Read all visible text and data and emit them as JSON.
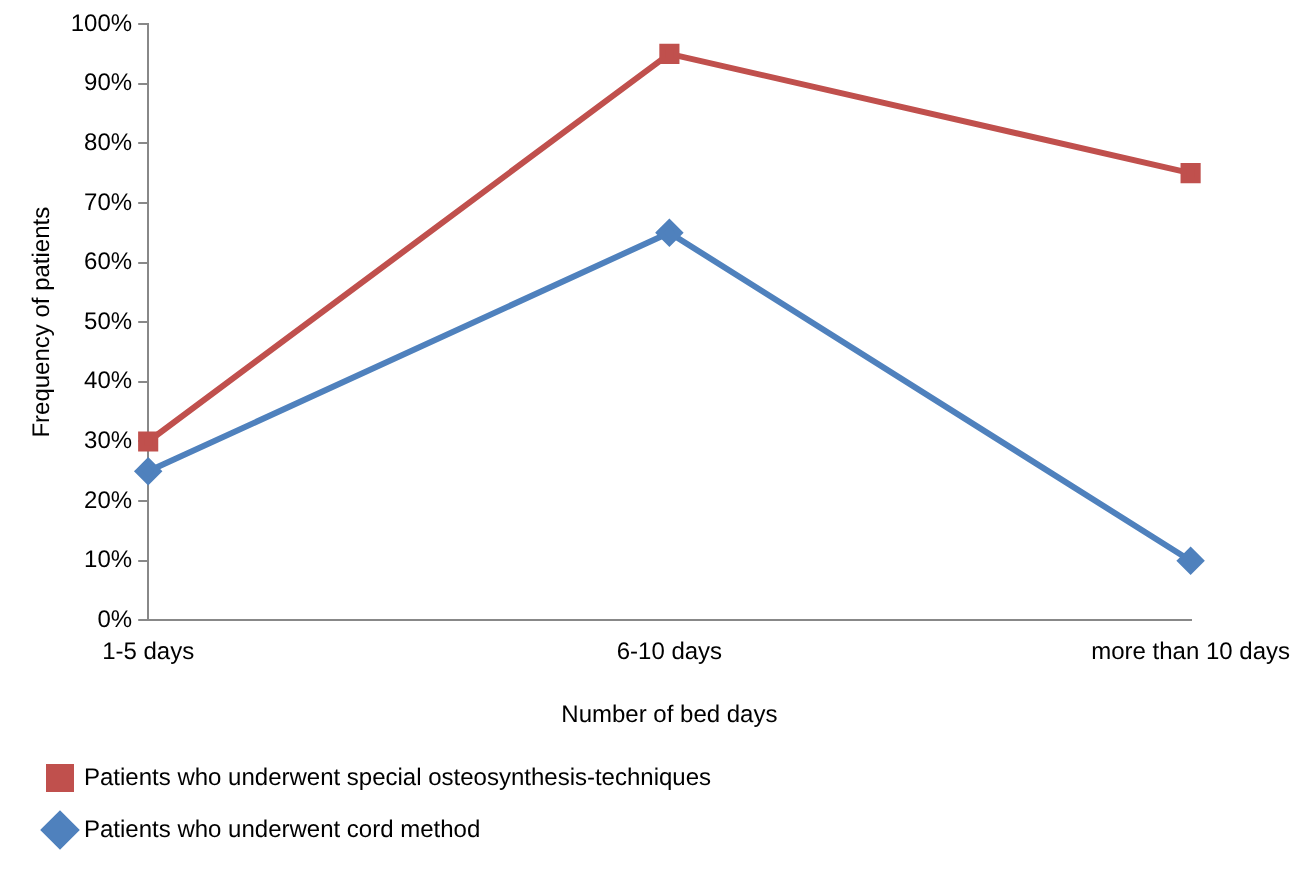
{
  "chart_data": {
    "type": "line",
    "xlabel": "Number of bed days",
    "ylabel": "Frequency of patients",
    "categories": [
      "1-5 days",
      "6-10 days",
      "more than 10 days"
    ],
    "series": [
      {
        "name": "Patients who underwent special osteosynthesis-techniques",
        "color": "#c0504d",
        "marker": "square",
        "values": [
          30,
          95,
          75
        ]
      },
      {
        "name": "Patients who underwent cord method",
        "color": "#4f81bd",
        "marker": "diamond",
        "values": [
          25,
          65,
          10
        ]
      }
    ],
    "ylim": [
      0,
      100
    ],
    "yticks": [
      {
        "value": 0,
        "label": "0%"
      },
      {
        "value": 10,
        "label": "10%"
      },
      {
        "value": 20,
        "label": "20%"
      },
      {
        "value": 30,
        "label": "30%"
      },
      {
        "value": 40,
        "label": "40%"
      },
      {
        "value": 50,
        "label": "50%"
      },
      {
        "value": 60,
        "label": "60%"
      },
      {
        "value": 70,
        "label": "70%"
      },
      {
        "value": 80,
        "label": "80%"
      },
      {
        "value": 90,
        "label": "90%"
      },
      {
        "value": 100,
        "label": "100%"
      }
    ],
    "grid": false,
    "legend": "bottom",
    "line_style": "solid"
  }
}
